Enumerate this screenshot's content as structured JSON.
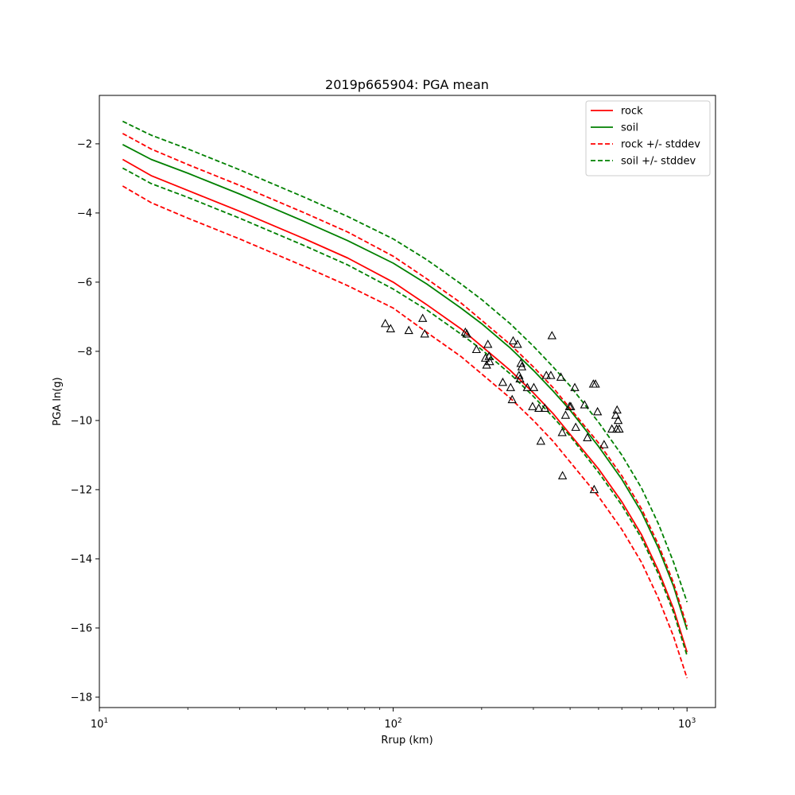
{
  "chart_data": {
    "type": "line",
    "title": "2019p665904: PGA mean",
    "xlabel": "Rrup (km)",
    "ylabel": "PGA ln(g)",
    "xscale": "log",
    "xlim": [
      10,
      1250
    ],
    "ylim": [
      -18.3,
      -0.6
    ],
    "grid": false,
    "legend_position": "top-right",
    "x_ticks": [
      {
        "value": 10,
        "base": "10",
        "exp": "1"
      },
      {
        "value": 100,
        "base": "10",
        "exp": "2"
      },
      {
        "value": 1000,
        "base": "10",
        "exp": "3"
      }
    ],
    "y_ticks": [
      {
        "value": -2,
        "label": "−2"
      },
      {
        "value": -4,
        "label": "−4"
      },
      {
        "value": -6,
        "label": "−6"
      },
      {
        "value": -8,
        "label": "−8"
      },
      {
        "value": -10,
        "label": "−10"
      },
      {
        "value": -12,
        "label": "−12"
      },
      {
        "value": -14,
        "label": "−14"
      },
      {
        "value": -16,
        "label": "−16"
      },
      {
        "value": -18,
        "label": "−18"
      }
    ],
    "x": [
      12,
      15,
      20,
      30,
      40,
      50,
      70,
      100,
      130,
      170,
      200,
      250,
      300,
      350,
      400,
      500,
      600,
      700,
      800,
      900,
      1000
    ],
    "series": [
      {
        "name": "rock",
        "color": "#ff0000",
        "dash": "solid",
        "values": [
          -2.45,
          -2.92,
          -3.35,
          -3.95,
          -4.4,
          -4.75,
          -5.3,
          -6.0,
          -6.65,
          -7.35,
          -7.85,
          -8.55,
          -9.2,
          -9.8,
          -10.4,
          -11.4,
          -12.35,
          -13.3,
          -14.35,
          -15.45,
          -16.7
        ]
      },
      {
        "name": "soil",
        "color": "#008000",
        "dash": "solid",
        "values": [
          -2.02,
          -2.45,
          -2.85,
          -3.45,
          -3.9,
          -4.25,
          -4.8,
          -5.45,
          -6.05,
          -6.75,
          -7.2,
          -7.9,
          -8.55,
          -9.15,
          -9.7,
          -10.75,
          -11.7,
          -12.65,
          -13.7,
          -14.8,
          -16.05
        ]
      },
      {
        "name": "rock +/- stddev",
        "color": "#ff0000",
        "dash": "dashed",
        "legend": true,
        "values": [
          -1.7,
          -2.15,
          -2.6,
          -3.2,
          -3.65,
          -4.0,
          -4.55,
          -5.25,
          -5.9,
          -6.6,
          -7.1,
          -7.8,
          -8.45,
          -9.05,
          -9.65,
          -10.65,
          -11.6,
          -12.55,
          -13.6,
          -14.7,
          -15.95
        ]
      },
      {
        "name": "rock +/- stddev",
        "color": "#ff0000",
        "dash": "dashed",
        "legend": false,
        "values": [
          -3.22,
          -3.7,
          -4.15,
          -4.75,
          -5.2,
          -5.55,
          -6.1,
          -6.75,
          -7.45,
          -8.15,
          -8.65,
          -9.35,
          -10.0,
          -10.6,
          -11.2,
          -12.2,
          -13.15,
          -14.1,
          -15.15,
          -16.25,
          -17.45
        ]
      },
      {
        "name": "soil +/- stddev",
        "color": "#008000",
        "dash": "dashed",
        "legend": true,
        "values": [
          -1.35,
          -1.75,
          -2.15,
          -2.75,
          -3.2,
          -3.55,
          -4.1,
          -4.75,
          -5.35,
          -6.05,
          -6.5,
          -7.2,
          -7.85,
          -8.45,
          -9.0,
          -10.05,
          -11.0,
          -11.95,
          -13.0,
          -14.1,
          -15.25
        ]
      },
      {
        "name": "soil +/- stddev",
        "color": "#008000",
        "dash": "dashed",
        "legend": false,
        "values": [
          -2.7,
          -3.15,
          -3.55,
          -4.15,
          -4.6,
          -4.95,
          -5.5,
          -6.2,
          -6.8,
          -7.5,
          -7.95,
          -8.65,
          -9.3,
          -9.9,
          -10.45,
          -11.5,
          -12.45,
          -13.4,
          -14.45,
          -15.55,
          -16.8
        ]
      }
    ],
    "observations": {
      "marker": "triangle",
      "color": "#000000",
      "points": [
        [
          94,
          -7.2
        ],
        [
          98,
          -7.35
        ],
        [
          113,
          -7.4
        ],
        [
          126,
          -7.05
        ],
        [
          128,
          -7.5
        ],
        [
          176,
          -7.45
        ],
        [
          178,
          -7.5
        ],
        [
          192,
          -7.95
        ],
        [
          206,
          -8.2
        ],
        [
          208,
          -8.4
        ],
        [
          210,
          -7.8
        ],
        [
          212,
          -8.15
        ],
        [
          213,
          -8.3
        ],
        [
          236,
          -8.9
        ],
        [
          251,
          -9.05
        ],
        [
          254,
          -9.4
        ],
        [
          256,
          -7.7
        ],
        [
          265,
          -7.8
        ],
        [
          268,
          -8.7
        ],
        [
          270,
          -8.8
        ],
        [
          272,
          -8.35
        ],
        [
          274,
          -8.45
        ],
        [
          286,
          -9.05
        ],
        [
          298,
          -9.6
        ],
        [
          301,
          -9.05
        ],
        [
          313,
          -9.65
        ],
        [
          318,
          -10.6
        ],
        [
          328,
          -9.65
        ],
        [
          332,
          -8.7
        ],
        [
          344,
          -8.7
        ],
        [
          347,
          -7.55
        ],
        [
          372,
          -8.75
        ],
        [
          376,
          -10.35
        ],
        [
          377,
          -11.6
        ],
        [
          386,
          -9.85
        ],
        [
          398,
          -9.6
        ],
        [
          402,
          -9.6
        ],
        [
          415,
          -9.05
        ],
        [
          418,
          -10.2
        ],
        [
          448,
          -9.55
        ],
        [
          458,
          -10.5
        ],
        [
          480,
          -8.95
        ],
        [
          483,
          -12.0
        ],
        [
          488,
          -8.95
        ],
        [
          496,
          -9.75
        ],
        [
          522,
          -10.7
        ],
        [
          555,
          -10.25
        ],
        [
          572,
          -9.85
        ],
        [
          576,
          -10.25
        ],
        [
          578,
          -9.7
        ],
        [
          583,
          -10.0
        ],
        [
          588,
          -10.25
        ]
      ]
    }
  }
}
